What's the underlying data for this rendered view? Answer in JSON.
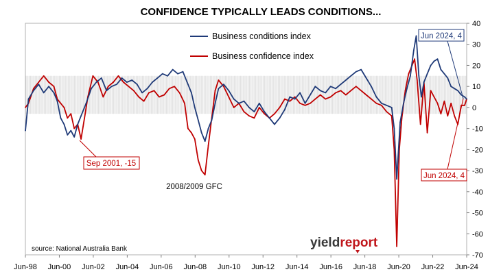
{
  "chart_data": {
    "type": "line",
    "title": "CONFIDENCE TYPICALLY LEADS CONDITIONS...",
    "source": "source: National Australia Bank",
    "brand": {
      "part1": "yield",
      "part2": "report",
      "color1": "#3a3a3a",
      "color2": "#c0161b"
    },
    "x_tick_labels": [
      "Jun-98",
      "Jun-00",
      "Jun-02",
      "Jun-04",
      "Jun-06",
      "Jun-08",
      "Jun-10",
      "Jun-12",
      "Jun-14",
      "Jun-16",
      "Jun-18",
      "Jun-20",
      "Jun-22",
      "Jun-24"
    ],
    "x_range": [
      1998.42,
      2024.42
    ],
    "ylim": [
      -70,
      40
    ],
    "yticks": [
      40,
      30,
      20,
      10,
      0,
      -10,
      -20,
      -30,
      -40,
      -50,
      -60,
      -70
    ],
    "band_range": [
      -3,
      15
    ],
    "legend_position": "top-center",
    "series": [
      {
        "name": "Business conditions index",
        "color": "#1f3a78",
        "points": [
          [
            1998.42,
            -11
          ],
          [
            1998.6,
            4
          ],
          [
            1998.9,
            8
          ],
          [
            1999.2,
            11
          ],
          [
            1999.5,
            7
          ],
          [
            1999.8,
            10
          ],
          [
            2000.1,
            7
          ],
          [
            2000.3,
            3
          ],
          [
            2000.5,
            -5
          ],
          [
            2000.7,
            -8
          ],
          [
            2000.9,
            -13
          ],
          [
            2001.1,
            -11
          ],
          [
            2001.3,
            -14
          ],
          [
            2001.5,
            -8
          ],
          [
            2001.7,
            -4
          ],
          [
            2002.0,
            2
          ],
          [
            2002.3,
            9
          ],
          [
            2002.6,
            12
          ],
          [
            2002.9,
            14
          ],
          [
            2003.2,
            8
          ],
          [
            2003.5,
            10
          ],
          [
            2003.8,
            11
          ],
          [
            2004.1,
            14
          ],
          [
            2004.4,
            12
          ],
          [
            2004.7,
            13
          ],
          [
            2005.0,
            11
          ],
          [
            2005.3,
            7
          ],
          [
            2005.6,
            9
          ],
          [
            2005.9,
            12
          ],
          [
            2006.2,
            14
          ],
          [
            2006.5,
            16
          ],
          [
            2006.8,
            15
          ],
          [
            2007.1,
            18
          ],
          [
            2007.4,
            16
          ],
          [
            2007.7,
            17
          ],
          [
            2008.0,
            11
          ],
          [
            2008.2,
            7
          ],
          [
            2008.4,
            0
          ],
          [
            2008.6,
            -6
          ],
          [
            2008.8,
            -12
          ],
          [
            2009.0,
            -16
          ],
          [
            2009.2,
            -10
          ],
          [
            2009.4,
            -6
          ],
          [
            2009.6,
            2
          ],
          [
            2009.8,
            9
          ],
          [
            2010.1,
            11
          ],
          [
            2010.4,
            8
          ],
          [
            2010.7,
            4
          ],
          [
            2011.0,
            2
          ],
          [
            2011.3,
            3
          ],
          [
            2011.6,
            0
          ],
          [
            2011.9,
            -2
          ],
          [
            2012.2,
            2
          ],
          [
            2012.5,
            -2
          ],
          [
            2012.8,
            -5
          ],
          [
            2013.1,
            -8
          ],
          [
            2013.4,
            -5
          ],
          [
            2013.7,
            -1
          ],
          [
            2014.0,
            5
          ],
          [
            2014.3,
            4
          ],
          [
            2014.6,
            7
          ],
          [
            2014.9,
            2
          ],
          [
            2015.2,
            6
          ],
          [
            2015.5,
            10
          ],
          [
            2015.8,
            8
          ],
          [
            2016.1,
            7
          ],
          [
            2016.4,
            10
          ],
          [
            2016.7,
            9
          ],
          [
            2017.0,
            11
          ],
          [
            2017.3,
            13
          ],
          [
            2017.6,
            15
          ],
          [
            2017.9,
            17
          ],
          [
            2018.2,
            18
          ],
          [
            2018.5,
            14
          ],
          [
            2018.8,
            10
          ],
          [
            2019.1,
            5
          ],
          [
            2019.4,
            2
          ],
          [
            2019.7,
            1
          ],
          [
            2020.0,
            0
          ],
          [
            2020.15,
            -10
          ],
          [
            2020.3,
            -34
          ],
          [
            2020.5,
            -7
          ],
          [
            2020.7,
            2
          ],
          [
            2020.9,
            9
          ],
          [
            2021.1,
            15
          ],
          [
            2021.3,
            27
          ],
          [
            2021.45,
            34
          ],
          [
            2021.6,
            15
          ],
          [
            2021.75,
            5
          ],
          [
            2021.9,
            12
          ],
          [
            2022.1,
            16
          ],
          [
            2022.3,
            20
          ],
          [
            2022.5,
            22
          ],
          [
            2022.7,
            23
          ],
          [
            2022.9,
            18
          ],
          [
            2023.1,
            16
          ],
          [
            2023.3,
            14
          ],
          [
            2023.5,
            10
          ],
          [
            2023.7,
            9
          ],
          [
            2023.9,
            8
          ],
          [
            2024.1,
            6
          ],
          [
            2024.3,
            5
          ],
          [
            2024.42,
            4
          ]
        ]
      },
      {
        "name": "Business confidence index",
        "color": "#c00000",
        "points": [
          [
            1998.42,
            0
          ],
          [
            1998.6,
            2
          ],
          [
            1998.9,
            9
          ],
          [
            1999.2,
            12
          ],
          [
            1999.5,
            15
          ],
          [
            1999.8,
            12
          ],
          [
            2000.1,
            10
          ],
          [
            2000.3,
            4
          ],
          [
            2000.5,
            2
          ],
          [
            2000.7,
            0
          ],
          [
            2000.9,
            -5
          ],
          [
            2001.1,
            -3
          ],
          [
            2001.3,
            -10
          ],
          [
            2001.5,
            -8
          ],
          [
            2001.7,
            -15
          ],
          [
            2001.9,
            -5
          ],
          [
            2002.1,
            5
          ],
          [
            2002.4,
            15
          ],
          [
            2002.7,
            12
          ],
          [
            2003.0,
            5
          ],
          [
            2003.3,
            10
          ],
          [
            2003.6,
            12
          ],
          [
            2003.9,
            15
          ],
          [
            2004.2,
            12
          ],
          [
            2004.5,
            10
          ],
          [
            2004.8,
            8
          ],
          [
            2005.1,
            5
          ],
          [
            2005.4,
            3
          ],
          [
            2005.7,
            7
          ],
          [
            2006.0,
            8
          ],
          [
            2006.3,
            5
          ],
          [
            2006.6,
            6
          ],
          [
            2006.9,
            9
          ],
          [
            2007.2,
            10
          ],
          [
            2007.5,
            7
          ],
          [
            2007.8,
            2
          ],
          [
            2008.0,
            -10
          ],
          [
            2008.2,
            -12
          ],
          [
            2008.4,
            -15
          ],
          [
            2008.6,
            -25
          ],
          [
            2008.8,
            -30
          ],
          [
            2009.0,
            -32
          ],
          [
            2009.2,
            -18
          ],
          [
            2009.4,
            -5
          ],
          [
            2009.6,
            8
          ],
          [
            2009.8,
            13
          ],
          [
            2010.1,
            10
          ],
          [
            2010.4,
            5
          ],
          [
            2010.7,
            0
          ],
          [
            2011.0,
            2
          ],
          [
            2011.3,
            -2
          ],
          [
            2011.6,
            -4
          ],
          [
            2011.9,
            -5
          ],
          [
            2012.2,
            0
          ],
          [
            2012.5,
            -3
          ],
          [
            2012.8,
            -5
          ],
          [
            2013.1,
            -3
          ],
          [
            2013.4,
            0
          ],
          [
            2013.7,
            4
          ],
          [
            2014.0,
            3
          ],
          [
            2014.3,
            5
          ],
          [
            2014.6,
            2
          ],
          [
            2014.9,
            1
          ],
          [
            2015.2,
            2
          ],
          [
            2015.5,
            4
          ],
          [
            2015.8,
            6
          ],
          [
            2016.1,
            4
          ],
          [
            2016.4,
            5
          ],
          [
            2016.7,
            7
          ],
          [
            2017.0,
            8
          ],
          [
            2017.3,
            6
          ],
          [
            2017.6,
            8
          ],
          [
            2017.9,
            10
          ],
          [
            2018.2,
            8
          ],
          [
            2018.5,
            6
          ],
          [
            2018.8,
            4
          ],
          [
            2019.1,
            2
          ],
          [
            2019.4,
            1
          ],
          [
            2019.7,
            -2
          ],
          [
            2020.0,
            -4
          ],
          [
            2020.15,
            -20
          ],
          [
            2020.3,
            -66
          ],
          [
            2020.45,
            -20
          ],
          [
            2020.6,
            -5
          ],
          [
            2020.8,
            8
          ],
          [
            2021.0,
            16
          ],
          [
            2021.2,
            20
          ],
          [
            2021.35,
            23
          ],
          [
            2021.5,
            13
          ],
          [
            2021.7,
            -8
          ],
          [
            2021.9,
            12
          ],
          [
            2022.1,
            -12
          ],
          [
            2022.3,
            8
          ],
          [
            2022.5,
            5
          ],
          [
            2022.7,
            2
          ],
          [
            2022.9,
            -3
          ],
          [
            2023.1,
            3
          ],
          [
            2023.3,
            -4
          ],
          [
            2023.5,
            2
          ],
          [
            2023.7,
            -4
          ],
          [
            2023.9,
            -8
          ],
          [
            2024.1,
            1
          ],
          [
            2024.3,
            1
          ],
          [
            2024.42,
            4
          ]
        ]
      }
    ],
    "annotations": [
      {
        "label": "Jun 2024, 4",
        "color": "#1f3a78",
        "x": 2024.42,
        "y": 4
      },
      {
        "label": "Sep 2001, -15",
        "color": "#c00000",
        "x": 2001.67,
        "y": -15
      },
      {
        "label": "Jun 2024, 4",
        "color": "#c00000",
        "x": 2024.42,
        "y": 4
      },
      {
        "label": "2008/2009 GFC",
        "color": "#000000",
        "x": 2009.0,
        "y": -32
      }
    ]
  }
}
